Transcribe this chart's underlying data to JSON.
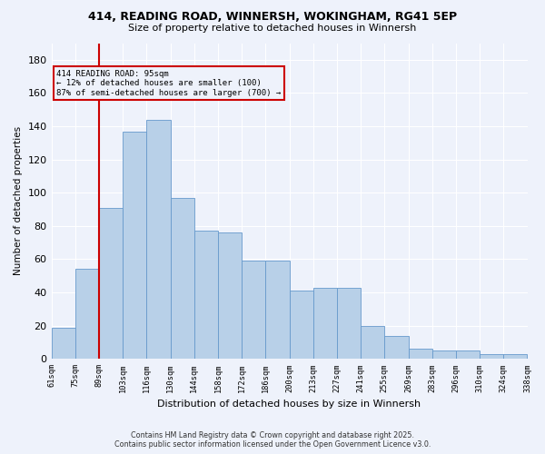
{
  "title1": "414, READING ROAD, WINNERSH, WOKINGHAM, RG41 5EP",
  "title2": "Size of property relative to detached houses in Winnersh",
  "xlabel": "Distribution of detached houses by size in Winnersh",
  "ylabel": "Number of detached properties",
  "bar_values": [
    19,
    54,
    91,
    137,
    144,
    97,
    77,
    76,
    59,
    59,
    41,
    43,
    43,
    20,
    14,
    6,
    5,
    5,
    3,
    3
  ],
  "tick_labels": [
    "61sqm",
    "75sqm",
    "89sqm",
    "103sqm",
    "116sqm",
    "130sqm",
    "144sqm",
    "158sqm",
    "172sqm",
    "186sqm",
    "200sqm",
    "213sqm",
    "227sqm",
    "241sqm",
    "255sqm",
    "269sqm",
    "283sqm",
    "296sqm",
    "310sqm",
    "324sqm",
    "338sqm"
  ],
  "bar_color": "#b8d0e8",
  "bar_edge_color": "#6699cc",
  "vline_x_index": 2,
  "vline_color": "#cc0000",
  "annotation_text": "414 READING ROAD: 95sqm\n← 12% of detached houses are smaller (100)\n87% of semi-detached houses are larger (700) →",
  "annotation_box_color": "#cc0000",
  "ylim": [
    0,
    190
  ],
  "yticks": [
    0,
    20,
    40,
    60,
    80,
    100,
    120,
    140,
    160,
    180
  ],
  "bg_color": "#eef2fb",
  "grid_color": "#ffffff",
  "footer1": "Contains HM Land Registry data © Crown copyright and database right 2025.",
  "footer2": "Contains public sector information licensed under the Open Government Licence v3.0."
}
